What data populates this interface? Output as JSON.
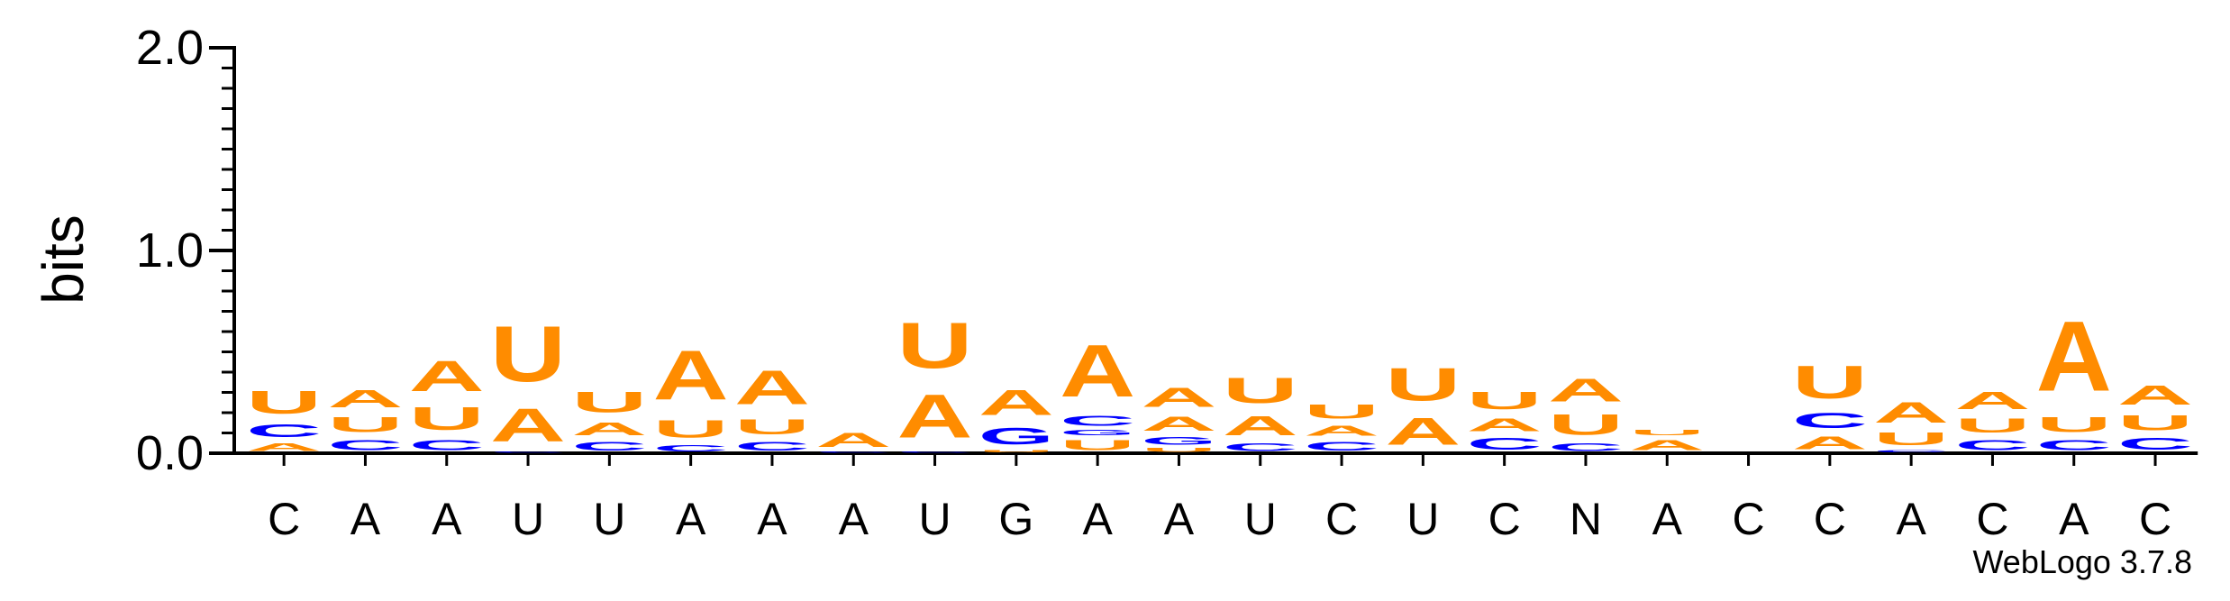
{
  "chart_data": {
    "type": "sequence-logo",
    "ylabel": "bits",
    "ylim": [
      0,
      2.0
    ],
    "yticks": [
      "0.0",
      "1.0",
      "2.0"
    ],
    "positions": [
      "C",
      "A",
      "A",
      "U",
      "U",
      "A",
      "A",
      "A",
      "U",
      "G",
      "A",
      "A",
      "U",
      "C",
      "U",
      "C",
      "N",
      "A",
      "C",
      "C",
      "A",
      "C",
      "A",
      "C"
    ],
    "stacks": [
      [
        [
          "A",
          0.06
        ],
        [
          "C",
          0.1
        ],
        [
          "U",
          0.18
        ]
      ],
      [
        [
          "C",
          0.08
        ],
        [
          "U",
          0.12
        ],
        [
          "A",
          0.14
        ]
      ],
      [
        [
          "C",
          0.08
        ],
        [
          "U",
          0.18
        ],
        [
          "A",
          0.24
        ]
      ],
      [
        [
          "C",
          0.01
        ],
        [
          "A",
          0.26
        ],
        [
          "U",
          0.44
        ]
      ],
      [
        [
          "C",
          0.07
        ],
        [
          "A",
          0.1
        ],
        [
          "U",
          0.16
        ]
      ],
      [
        [
          "C",
          0.05
        ],
        [
          "U",
          0.14
        ],
        [
          "A",
          0.39
        ]
      ],
      [
        [
          "C",
          0.07
        ],
        [
          "U",
          0.12
        ],
        [
          "A",
          0.27
        ]
      ],
      [
        [
          "C",
          0.01
        ],
        [
          "A",
          0.11
        ]
      ],
      [
        [
          "C",
          0.01
        ],
        [
          "A",
          0.34
        ],
        [
          "U",
          0.36
        ]
      ],
      [
        [
          "U",
          0.02
        ],
        [
          "G",
          0.13
        ],
        [
          "A",
          0.2
        ]
      ],
      [
        [
          "U",
          0.08
        ],
        [
          "G",
          0.04
        ],
        [
          "C",
          0.08
        ],
        [
          "A",
          0.41
        ]
      ],
      [
        [
          "U",
          0.03
        ],
        [
          "G",
          0.06
        ],
        [
          "A",
          0.11
        ],
        [
          "A",
          0.15
        ]
      ],
      [
        [
          "C",
          0.06
        ],
        [
          "A",
          0.15
        ],
        [
          "U",
          0.2
        ]
      ],
      [
        [
          "C",
          0.07
        ],
        [
          "A",
          0.08
        ],
        [
          "U",
          0.11
        ]
      ],
      [
        [
          "A",
          0.21
        ],
        [
          "U",
          0.26
        ]
      ],
      [
        [
          "C",
          0.09
        ],
        [
          "A",
          0.1
        ],
        [
          "U",
          0.14
        ]
      ],
      [
        [
          "C",
          0.06
        ],
        [
          "U",
          0.16
        ],
        [
          "A",
          0.18
        ]
      ],
      [
        [
          "A",
          0.08
        ],
        [
          "U",
          0.04
        ]
      ],
      [],
      [
        [
          "A",
          0.1
        ],
        [
          "C",
          0.12
        ],
        [
          "U",
          0.26
        ]
      ],
      [
        [
          "C",
          0.02
        ],
        [
          "U",
          0.1
        ],
        [
          "A",
          0.16
        ]
      ],
      [
        [
          "C",
          0.08
        ],
        [
          "U",
          0.11
        ],
        [
          "A",
          0.14
        ]
      ],
      [
        [
          "C",
          0.08
        ],
        [
          "U",
          0.12
        ],
        [
          "A",
          0.55
        ]
      ],
      [
        [
          "C",
          0.09
        ],
        [
          "U",
          0.12
        ],
        [
          "A",
          0.15
        ]
      ]
    ]
  },
  "colors": {
    "A": "#ff8c00",
    "U": "#ff8c00",
    "C": "#0000ff",
    "G": "#0000ff",
    "axis": "#000000"
  },
  "credit": "WebLogo 3.7.8"
}
